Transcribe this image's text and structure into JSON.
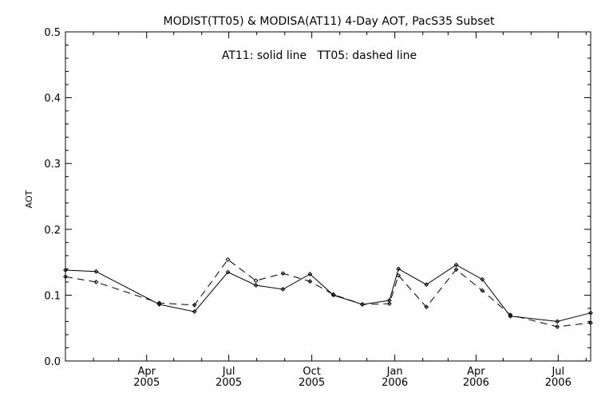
{
  "chart_data": {
    "type": "line",
    "title": "MODIST(TT05) & MODISA(AT11) 4-Day AOT, PacS35 Subset",
    "annotation": "AT11: solid line   TT05: dashed line",
    "xlabel": "",
    "ylabel": "AOT",
    "ylim": [
      0.0,
      0.5
    ],
    "yticks": [
      "0.0",
      "0.1",
      "0.2",
      "0.3",
      "0.4",
      "0.5"
    ],
    "xlim": [
      "2005-01-01",
      "2006-08-06"
    ],
    "xticks": [
      {
        "date": "2005-04-01",
        "month": "Apr",
        "year": "2005"
      },
      {
        "date": "2005-07-01",
        "month": "Jul",
        "year": "2005"
      },
      {
        "date": "2005-10-01",
        "month": "Oct",
        "year": "2005"
      },
      {
        "date": "2006-01-01",
        "month": "Jan",
        "year": "2006"
      },
      {
        "date": "2006-04-01",
        "month": "Apr",
        "year": "2006"
      },
      {
        "date": "2006-07-01",
        "month": "Jul",
        "year": "2006"
      }
    ],
    "grid": false,
    "series": [
      {
        "name": "AT11",
        "style": "solid",
        "x": [
          "2005-01-01",
          "2005-02-04",
          "2005-04-15",
          "2005-05-24",
          "2005-06-30",
          "2005-07-31",
          "2005-08-30",
          "2005-09-29",
          "2005-10-25",
          "2005-11-26",
          "2005-12-26",
          "2006-01-05",
          "2006-02-05",
          "2006-03-10",
          "2006-04-08",
          "2006-05-09",
          "2006-06-30",
          "2006-08-06"
        ],
        "values": [
          0.138,
          0.136,
          0.086,
          0.075,
          0.135,
          0.115,
          0.109,
          0.132,
          0.1,
          0.086,
          0.092,
          0.14,
          0.116,
          0.146,
          0.124,
          0.068,
          0.06,
          0.073
        ]
      },
      {
        "name": "TT05",
        "style": "dashed",
        "x": [
          "2005-01-01",
          "2005-02-04",
          "2005-04-15",
          "2005-05-24",
          "2005-06-30",
          "2005-07-31",
          "2005-08-30",
          "2005-09-29",
          "2005-10-25",
          "2005-11-26",
          "2005-12-26",
          "2006-01-05",
          "2006-02-05",
          "2006-03-10",
          "2006-04-08",
          "2006-05-09",
          "2006-06-30",
          "2006-08-06"
        ],
        "values": [
          0.128,
          0.12,
          0.088,
          0.085,
          0.154,
          0.122,
          0.133,
          0.121,
          0.101,
          0.086,
          0.087,
          0.13,
          0.082,
          0.139,
          0.107,
          0.07,
          0.052,
          0.058
        ]
      }
    ]
  }
}
